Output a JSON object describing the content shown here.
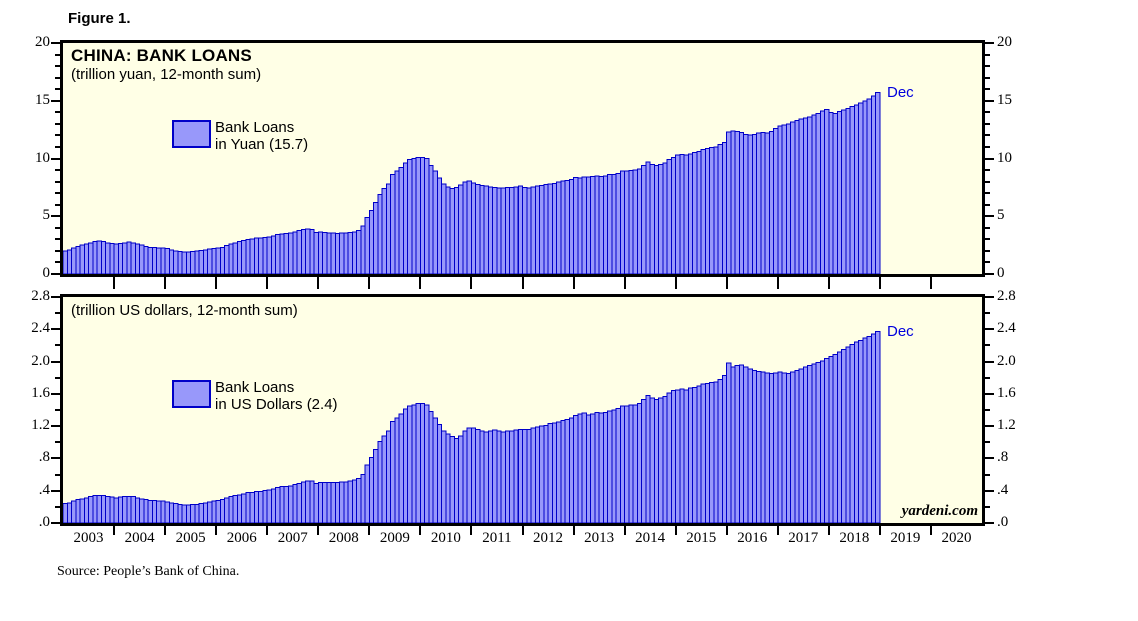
{
  "figure_label": "Figure 1.",
  "header": {
    "title": "CHINA: BANK LOANS"
  },
  "colors": {
    "plot_bg": "#FFFFE6",
    "bar_fill": "#9898FA",
    "bar_stroke": "#0000C8",
    "axis": "#000000",
    "dec_label": "#0000DD"
  },
  "panel1": {
    "subtitle": "(trillion yuan, 12-month sum)",
    "legend_line1": "Bank Loans",
    "legend_line2": "in Yuan (15.7)",
    "dec_label": "Dec",
    "y_tick_labels": [
      "20",
      "15",
      "10",
      "5",
      "0"
    ]
  },
  "panel2": {
    "subtitle": "(trillion US dollars, 12-month sum)",
    "legend_line1": "Bank Loans",
    "legend_line2": "in US Dollars (2.4)",
    "dec_label": "Dec",
    "y_tick_labels": [
      "2.8",
      "2.4",
      "2.0",
      "1.6",
      "1.2",
      ".8",
      ".4",
      ".0"
    ]
  },
  "x_axis": {
    "year_labels": [
      "2003",
      "2004",
      "2005",
      "2006",
      "2007",
      "2008",
      "2009",
      "2010",
      "2011",
      "2012",
      "2013",
      "2014",
      "2015",
      "2016",
      "2017",
      "2018",
      "2019",
      "2020"
    ]
  },
  "branding": "yardeni.com",
  "source_note": "Source: People’s Bank of China.",
  "chart_data": [
    {
      "type": "bar",
      "title": "CHINA: BANK LOANS",
      "subtitle": "(trillion yuan, 12-month sum)",
      "series_name": "Bank Loans in Yuan",
      "last_point_label": "Dec 2018 = 15.7",
      "x_start": "2003-01",
      "x_end": "2018-12",
      "frequency": "monthly",
      "x_domain": [
        "2003-01",
        "2021-01"
      ],
      "ylim": [
        0,
        20
      ],
      "y_major_step": 5,
      "y_minor_step": 1,
      "grid": false,
      "legend_position": "upper-left-inside",
      "values": [
        2.0,
        2.1,
        2.25,
        2.4,
        2.5,
        2.6,
        2.7,
        2.8,
        2.85,
        2.8,
        2.7,
        2.65,
        2.6,
        2.65,
        2.7,
        2.75,
        2.7,
        2.6,
        2.5,
        2.4,
        2.3,
        2.3,
        2.25,
        2.25,
        2.2,
        2.1,
        2.0,
        1.95,
        1.9,
        1.9,
        1.95,
        2.0,
        2.05,
        2.1,
        2.15,
        2.2,
        2.25,
        2.3,
        2.45,
        2.6,
        2.7,
        2.8,
        2.9,
        3.0,
        3.05,
        3.1,
        3.1,
        3.15,
        3.2,
        3.3,
        3.4,
        3.45,
        3.5,
        3.55,
        3.65,
        3.75,
        3.85,
        3.9,
        3.85,
        3.6,
        3.65,
        3.6,
        3.55,
        3.55,
        3.5,
        3.55,
        3.55,
        3.6,
        3.65,
        3.75,
        4.15,
        4.9,
        5.5,
        6.2,
        6.9,
        7.4,
        7.8,
        8.6,
        8.9,
        9.2,
        9.6,
        9.9,
        10.0,
        10.1,
        10.1,
        10.0,
        9.4,
        8.9,
        8.3,
        7.8,
        7.55,
        7.4,
        7.5,
        7.7,
        7.95,
        8.05,
        7.9,
        7.75,
        7.65,
        7.6,
        7.55,
        7.5,
        7.45,
        7.45,
        7.5,
        7.5,
        7.55,
        7.6,
        7.5,
        7.45,
        7.55,
        7.6,
        7.65,
        7.75,
        7.8,
        7.85,
        7.95,
        8.05,
        8.1,
        8.2,
        8.35,
        8.3,
        8.4,
        8.4,
        8.45,
        8.5,
        8.45,
        8.5,
        8.6,
        8.6,
        8.7,
        8.9,
        8.9,
        8.95,
        9.0,
        9.1,
        9.4,
        9.7,
        9.5,
        9.4,
        9.5,
        9.6,
        9.9,
        10.1,
        10.3,
        10.35,
        10.3,
        10.4,
        10.5,
        10.6,
        10.8,
        10.85,
        10.95,
        11.0,
        11.2,
        11.4,
        12.3,
        12.4,
        12.35,
        12.25,
        12.1,
        12.05,
        12.1,
        12.2,
        12.25,
        12.2,
        12.35,
        12.6,
        12.8,
        12.9,
        13.0,
        13.15,
        13.3,
        13.4,
        13.5,
        13.6,
        13.75,
        13.9,
        14.1,
        14.25,
        14.0,
        13.9,
        14.05,
        14.2,
        14.35,
        14.5,
        14.65,
        14.8,
        15.0,
        15.15,
        15.4,
        15.7
      ]
    },
    {
      "type": "bar",
      "subtitle": "(trillion US dollars, 12-month sum)",
      "series_name": "Bank Loans in US Dollars",
      "last_point_label": "Dec 2018 = 2.4",
      "x_start": "2003-01",
      "x_end": "2018-12",
      "frequency": "monthly",
      "x_domain": [
        "2003-01",
        "2021-01"
      ],
      "ylim": [
        0,
        2.8
      ],
      "y_major_step": 0.4,
      "y_minor_step": 0.2,
      "grid": false,
      "legend_position": "upper-left-inside",
      "values": [
        0.24,
        0.25,
        0.27,
        0.29,
        0.3,
        0.31,
        0.33,
        0.34,
        0.34,
        0.34,
        0.33,
        0.32,
        0.31,
        0.32,
        0.33,
        0.33,
        0.33,
        0.31,
        0.3,
        0.29,
        0.28,
        0.28,
        0.27,
        0.27,
        0.26,
        0.25,
        0.24,
        0.23,
        0.22,
        0.22,
        0.23,
        0.23,
        0.24,
        0.25,
        0.26,
        0.27,
        0.28,
        0.29,
        0.31,
        0.33,
        0.34,
        0.35,
        0.36,
        0.38,
        0.38,
        0.39,
        0.39,
        0.4,
        0.41,
        0.42,
        0.44,
        0.45,
        0.45,
        0.46,
        0.48,
        0.49,
        0.51,
        0.52,
        0.52,
        0.49,
        0.5,
        0.5,
        0.5,
        0.5,
        0.5,
        0.51,
        0.51,
        0.52,
        0.53,
        0.55,
        0.6,
        0.72,
        0.81,
        0.91,
        1.01,
        1.08,
        1.14,
        1.26,
        1.3,
        1.35,
        1.41,
        1.45,
        1.46,
        1.48,
        1.48,
        1.46,
        1.38,
        1.3,
        1.22,
        1.14,
        1.1,
        1.07,
        1.05,
        1.08,
        1.14,
        1.18,
        1.18,
        1.16,
        1.14,
        1.13,
        1.14,
        1.15,
        1.14,
        1.13,
        1.14,
        1.14,
        1.15,
        1.16,
        1.16,
        1.16,
        1.18,
        1.19,
        1.2,
        1.21,
        1.23,
        1.24,
        1.25,
        1.27,
        1.28,
        1.3,
        1.33,
        1.35,
        1.36,
        1.34,
        1.35,
        1.37,
        1.36,
        1.37,
        1.39,
        1.4,
        1.42,
        1.45,
        1.45,
        1.46,
        1.46,
        1.48,
        1.53,
        1.58,
        1.55,
        1.53,
        1.55,
        1.57,
        1.61,
        1.64,
        1.65,
        1.66,
        1.65,
        1.67,
        1.68,
        1.7,
        1.72,
        1.73,
        1.74,
        1.75,
        1.78,
        1.83,
        1.98,
        1.93,
        1.95,
        1.96,
        1.93,
        1.91,
        1.89,
        1.88,
        1.87,
        1.86,
        1.85,
        1.86,
        1.87,
        1.86,
        1.85,
        1.87,
        1.89,
        1.91,
        1.93,
        1.95,
        1.97,
        1.99,
        2.01,
        2.04,
        2.06,
        2.09,
        2.12,
        2.15,
        2.18,
        2.21,
        2.24,
        2.26,
        2.29,
        2.31,
        2.34,
        2.37
      ]
    }
  ]
}
